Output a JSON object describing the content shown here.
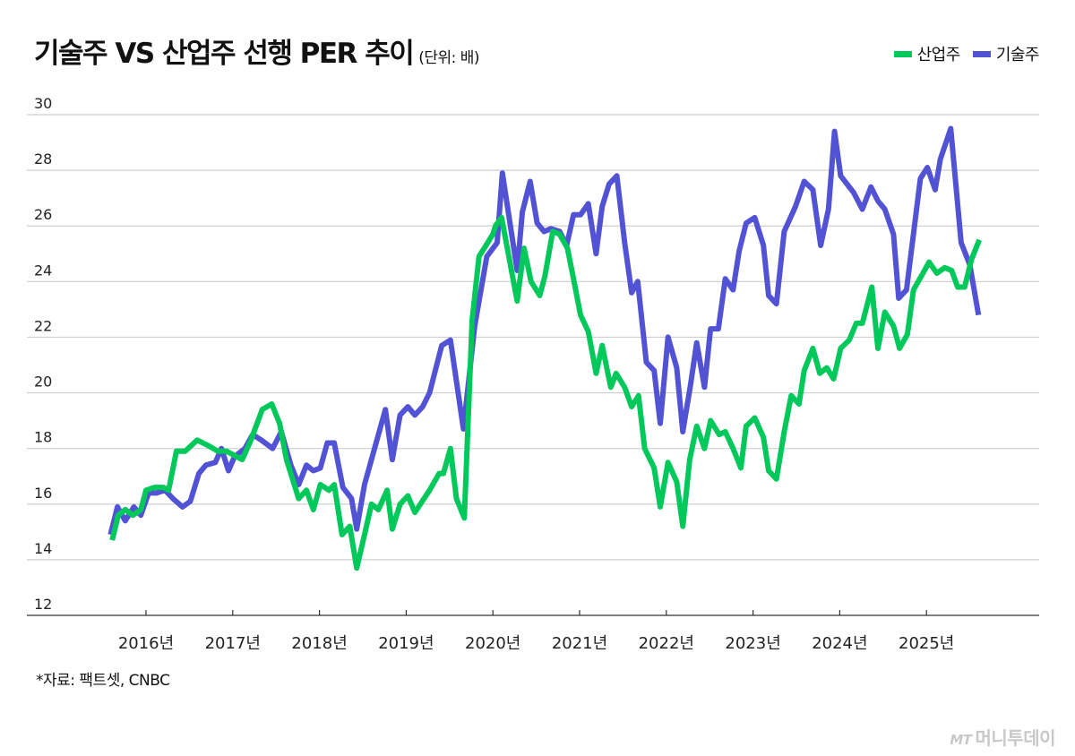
{
  "header": {
    "title": "기술주 VS 산업주 선행 PER 추이",
    "unit": "(단위: 배)"
  },
  "source": "*자료: 팩트셋, CNBC",
  "watermark": {
    "mt": "MT",
    "name": "머니투데이"
  },
  "chart_data": {
    "type": "line",
    "title": "기술주 VS 산업주 선행 PER 추이",
    "ylabel": "(단위: 배)",
    "ylim": [
      12,
      30
    ],
    "yticks": [
      30,
      28,
      26,
      24,
      22,
      20,
      18,
      16,
      14,
      12
    ],
    "xticks": [
      2016,
      2017,
      2018,
      2019,
      2020,
      2021,
      2022,
      2023,
      2024,
      2025
    ],
    "xtick_labels": [
      "2016년",
      "2017년",
      "2018년",
      "2019년",
      "2020년",
      "2021년",
      "2022년",
      "2023년",
      "2024년",
      "2025년"
    ],
    "grid": true,
    "legend_position": "top-right",
    "series": [
      {
        "name": "산업주",
        "color": "#00c85a",
        "points": [
          [
            2015.61,
            14.7
          ],
          [
            2015.68,
            15.6
          ],
          [
            2015.76,
            15.8
          ],
          [
            2015.85,
            15.6
          ],
          [
            2015.94,
            15.8
          ],
          [
            2016.0,
            16.5
          ],
          [
            2016.1,
            16.6
          ],
          [
            2016.2,
            16.6
          ],
          [
            2016.26,
            16.5
          ],
          [
            2016.35,
            17.9
          ],
          [
            2016.45,
            17.9
          ],
          [
            2016.59,
            18.3
          ],
          [
            2016.72,
            18.1
          ],
          [
            2016.83,
            17.9
          ],
          [
            2016.93,
            17.9
          ],
          [
            2017.11,
            17.6
          ],
          [
            2017.21,
            18.3
          ],
          [
            2017.34,
            19.4
          ],
          [
            2017.45,
            19.6
          ],
          [
            2017.54,
            18.9
          ],
          [
            2017.62,
            17.6
          ],
          [
            2017.76,
            16.2
          ],
          [
            2017.85,
            16.5
          ],
          [
            2017.93,
            15.8
          ],
          [
            2018.01,
            16.7
          ],
          [
            2018.11,
            16.5
          ],
          [
            2018.17,
            16.7
          ],
          [
            2018.26,
            14.9
          ],
          [
            2018.35,
            15.2
          ],
          [
            2018.43,
            13.7
          ],
          [
            2018.52,
            14.9
          ],
          [
            2018.6,
            16.0
          ],
          [
            2018.68,
            15.8
          ],
          [
            2018.78,
            16.5
          ],
          [
            2018.84,
            15.1
          ],
          [
            2018.93,
            16.0
          ],
          [
            2019.02,
            16.3
          ],
          [
            2019.1,
            15.7
          ],
          [
            2019.27,
            16.5
          ],
          [
            2019.38,
            17.1
          ],
          [
            2019.43,
            17.1
          ],
          [
            2019.51,
            18.0
          ],
          [
            2019.58,
            16.2
          ],
          [
            2019.67,
            15.5
          ],
          [
            2019.76,
            22.6
          ],
          [
            2019.84,
            24.9
          ],
          [
            2019.92,
            25.3
          ],
          [
            2020.0,
            25.7
          ],
          [
            2020.03,
            26.0
          ],
          [
            2020.1,
            26.3
          ],
          [
            2020.28,
            23.3
          ],
          [
            2020.36,
            25.2
          ],
          [
            2020.44,
            24.0
          ],
          [
            2020.54,
            23.5
          ],
          [
            2020.6,
            24.2
          ],
          [
            2020.69,
            25.8
          ],
          [
            2020.77,
            25.7
          ],
          [
            2020.86,
            25.2
          ],
          [
            2020.93,
            24.1
          ],
          [
            2021.01,
            22.8
          ],
          [
            2021.1,
            22.2
          ],
          [
            2021.19,
            20.7
          ],
          [
            2021.26,
            21.7
          ],
          [
            2021.36,
            20.2
          ],
          [
            2021.42,
            20.7
          ],
          [
            2021.52,
            20.2
          ],
          [
            2021.6,
            19.5
          ],
          [
            2021.68,
            19.9
          ],
          [
            2021.75,
            18.0
          ],
          [
            2021.86,
            17.3
          ],
          [
            2021.93,
            15.9
          ],
          [
            2022.02,
            17.5
          ],
          [
            2022.12,
            16.8
          ],
          [
            2022.19,
            15.2
          ],
          [
            2022.27,
            17.6
          ],
          [
            2022.35,
            18.8
          ],
          [
            2022.44,
            18.0
          ],
          [
            2022.51,
            19.0
          ],
          [
            2022.61,
            18.5
          ],
          [
            2022.68,
            18.6
          ],
          [
            2022.77,
            18.0
          ],
          [
            2022.86,
            17.3
          ],
          [
            2022.92,
            18.8
          ],
          [
            2023.02,
            19.1
          ],
          [
            2023.12,
            18.4
          ],
          [
            2023.18,
            17.2
          ],
          [
            2023.27,
            16.9
          ],
          [
            2023.36,
            18.6
          ],
          [
            2023.44,
            19.9
          ],
          [
            2023.53,
            19.6
          ],
          [
            2023.59,
            20.8
          ],
          [
            2023.69,
            21.6
          ],
          [
            2023.77,
            20.7
          ],
          [
            2023.85,
            20.9
          ],
          [
            2023.93,
            20.5
          ],
          [
            2024.01,
            21.6
          ],
          [
            2024.11,
            21.9
          ],
          [
            2024.19,
            22.5
          ],
          [
            2024.26,
            22.5
          ],
          [
            2024.37,
            23.8
          ],
          [
            2024.44,
            21.6
          ],
          [
            2024.52,
            22.9
          ],
          [
            2024.62,
            22.4
          ],
          [
            2024.69,
            21.6
          ],
          [
            2024.78,
            22.1
          ],
          [
            2024.85,
            23.7
          ],
          [
            2024.96,
            24.3
          ],
          [
            2025.03,
            24.7
          ],
          [
            2025.12,
            24.3
          ],
          [
            2025.21,
            24.5
          ],
          [
            2025.29,
            24.4
          ],
          [
            2025.36,
            23.8
          ],
          [
            2025.44,
            23.8
          ],
          [
            2025.52,
            24.8
          ],
          [
            2025.61,
            25.5
          ]
        ]
      },
      {
        "name": "기술주",
        "color": "#5252d4",
        "points": [
          [
            2015.59,
            14.9
          ],
          [
            2015.67,
            15.9
          ],
          [
            2015.76,
            15.4
          ],
          [
            2015.86,
            15.9
          ],
          [
            2015.94,
            15.6
          ],
          [
            2016.03,
            16.4
          ],
          [
            2016.12,
            16.4
          ],
          [
            2016.22,
            16.5
          ],
          [
            2016.31,
            16.2
          ],
          [
            2016.42,
            15.9
          ],
          [
            2016.51,
            16.1
          ],
          [
            2016.61,
            17.1
          ],
          [
            2016.69,
            17.4
          ],
          [
            2016.8,
            17.5
          ],
          [
            2016.87,
            18.0
          ],
          [
            2016.95,
            17.2
          ],
          [
            2017.02,
            17.7
          ],
          [
            2017.14,
            18.0
          ],
          [
            2017.23,
            18.5
          ],
          [
            2017.33,
            18.3
          ],
          [
            2017.46,
            18.0
          ],
          [
            2017.56,
            18.6
          ],
          [
            2017.67,
            17.4
          ],
          [
            2017.76,
            16.7
          ],
          [
            2017.85,
            17.4
          ],
          [
            2017.93,
            17.2
          ],
          [
            2018.01,
            17.3
          ],
          [
            2018.09,
            18.2
          ],
          [
            2018.17,
            18.2
          ],
          [
            2018.27,
            16.6
          ],
          [
            2018.37,
            16.2
          ],
          [
            2018.43,
            15.1
          ],
          [
            2018.52,
            16.7
          ],
          [
            2018.76,
            19.4
          ],
          [
            2018.84,
            17.6
          ],
          [
            2018.93,
            19.2
          ],
          [
            2019.02,
            19.5
          ],
          [
            2019.1,
            19.2
          ],
          [
            2019.19,
            19.5
          ],
          [
            2019.27,
            20.0
          ],
          [
            2019.41,
            21.7
          ],
          [
            2019.51,
            21.9
          ],
          [
            2019.66,
            18.7
          ],
          [
            2019.79,
            22.4
          ],
          [
            2019.93,
            24.9
          ],
          [
            2020.05,
            25.4
          ],
          [
            2020.11,
            27.9
          ],
          [
            2020.28,
            24.4
          ],
          [
            2020.34,
            26.5
          ],
          [
            2020.43,
            27.6
          ],
          [
            2020.51,
            26.1
          ],
          [
            2020.59,
            25.8
          ],
          [
            2020.67,
            25.9
          ],
          [
            2020.77,
            25.8
          ],
          [
            2020.85,
            25.3
          ],
          [
            2020.93,
            26.4
          ],
          [
            2021.01,
            26.4
          ],
          [
            2021.1,
            26.8
          ],
          [
            2021.19,
            25.0
          ],
          [
            2021.26,
            26.7
          ],
          [
            2021.34,
            27.5
          ],
          [
            2021.43,
            27.8
          ],
          [
            2021.52,
            25.4
          ],
          [
            2021.6,
            23.6
          ],
          [
            2021.67,
            24.0
          ],
          [
            2021.77,
            21.1
          ],
          [
            2021.86,
            20.8
          ],
          [
            2021.93,
            18.9
          ],
          [
            2022.02,
            22.0
          ],
          [
            2022.12,
            20.9
          ],
          [
            2022.19,
            18.6
          ],
          [
            2022.28,
            20.3
          ],
          [
            2022.35,
            21.8
          ],
          [
            2022.44,
            20.2
          ],
          [
            2022.51,
            22.3
          ],
          [
            2022.6,
            22.3
          ],
          [
            2022.68,
            24.1
          ],
          [
            2022.77,
            23.7
          ],
          [
            2022.84,
            25.1
          ],
          [
            2022.92,
            26.1
          ],
          [
            2023.02,
            26.3
          ],
          [
            2023.12,
            25.3
          ],
          [
            2023.18,
            23.5
          ],
          [
            2023.27,
            23.2
          ],
          [
            2023.36,
            25.8
          ],
          [
            2023.49,
            26.7
          ],
          [
            2023.59,
            27.6
          ],
          [
            2023.69,
            27.3
          ],
          [
            2023.78,
            25.3
          ],
          [
            2023.87,
            26.6
          ],
          [
            2023.94,
            29.4
          ],
          [
            2024.01,
            27.8
          ],
          [
            2024.16,
            27.2
          ],
          [
            2024.26,
            26.6
          ],
          [
            2024.36,
            27.4
          ],
          [
            2024.44,
            26.9
          ],
          [
            2024.52,
            26.6
          ],
          [
            2024.62,
            25.7
          ],
          [
            2024.68,
            23.4
          ],
          [
            2024.77,
            23.7
          ],
          [
            2024.93,
            27.7
          ],
          [
            2025.01,
            28.1
          ],
          [
            2025.1,
            27.3
          ],
          [
            2025.16,
            28.4
          ],
          [
            2025.28,
            29.5
          ],
          [
            2025.35,
            27.1
          ],
          [
            2025.4,
            25.4
          ],
          [
            2025.5,
            24.6
          ],
          [
            2025.6,
            22.8
          ]
        ]
      }
    ]
  }
}
